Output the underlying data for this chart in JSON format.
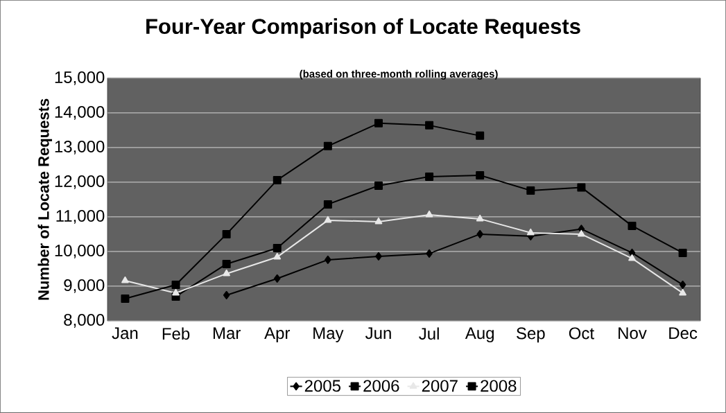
{
  "chart_data": {
    "type": "line",
    "title": "Four-Year Comparison of Locate Requests",
    "subtitle": "(based on three-month rolling averages)",
    "ylabel": "Number of Locate Requests",
    "categories": [
      "Jan",
      "Feb",
      "Mar",
      "Apr",
      "May",
      "Jun",
      "Jul",
      "Aug",
      "Sep",
      "Oct",
      "Nov",
      "Dec"
    ],
    "ylim": [
      8000,
      15000
    ],
    "yticks": [
      {
        "value": 8000,
        "label": "8,000"
      },
      {
        "value": 9000,
        "label": "9,000"
      },
      {
        "value": 10000,
        "label": "10,000"
      },
      {
        "value": 11000,
        "label": "11,000"
      },
      {
        "value": 12000,
        "label": "12,000"
      },
      {
        "value": 13000,
        "label": "13,000"
      },
      {
        "value": 14000,
        "label": "14,000"
      },
      {
        "value": 15000,
        "label": "15,000"
      }
    ],
    "grid": "y",
    "legend": "bottom",
    "series": [
      {
        "name": "2005",
        "color": "#000000",
        "marker": "diamond",
        "values": [
          null,
          null,
          8740,
          9220,
          9760,
          9860,
          9940,
          10500,
          10440,
          10650,
          9960,
          9040
        ]
      },
      {
        "name": "2006",
        "color": "#000000",
        "marker": "square",
        "values": [
          null,
          8700,
          9640,
          10100,
          11360,
          11900,
          12160,
          12200,
          11760,
          11850,
          10740,
          9960
        ]
      },
      {
        "name": "2007",
        "color": "#e8e8e8",
        "marker": "triangle",
        "values": [
          9160,
          8800,
          9360,
          9840,
          10900,
          10860,
          11060,
          10940,
          10540,
          10500,
          9800,
          8800
        ]
      },
      {
        "name": "2008",
        "color": "#000000",
        "marker": "square",
        "values": [
          8640,
          9040,
          10500,
          12060,
          13040,
          13700,
          13640,
          13340,
          null,
          null,
          null,
          null
        ]
      }
    ]
  }
}
